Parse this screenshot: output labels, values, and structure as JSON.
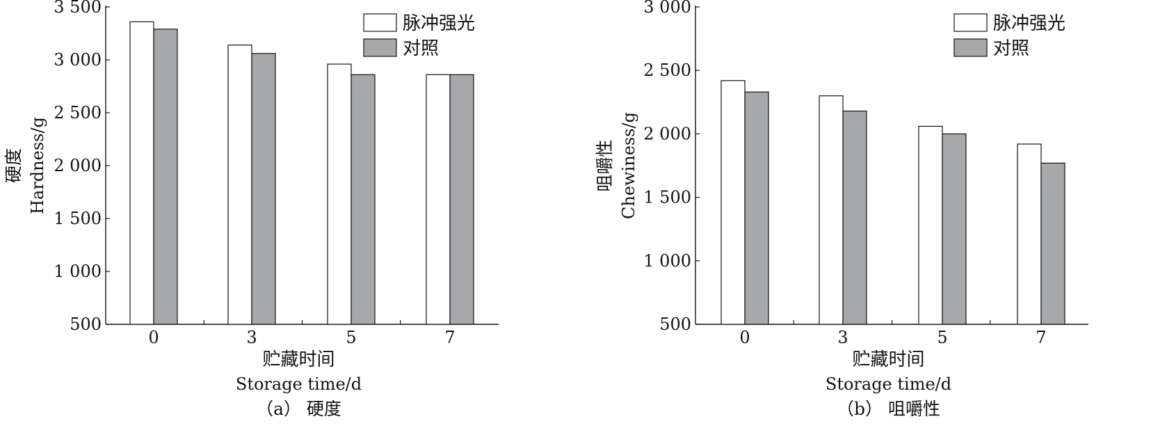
{
  "legend_labels": [
    "脉冲强光",
    "对照"
  ],
  "colors": {
    "pulsed": "#ffffff",
    "control": "#a7a8aa",
    "axis": "#111111"
  },
  "chart_data": [
    {
      "type": "bar",
      "categories": [
        "0",
        "3",
        "5",
        "7"
      ],
      "series": [
        {
          "name": "脉冲强光",
          "values": [
            3360,
            3140,
            2960,
            2860
          ]
        },
        {
          "name": "对照",
          "values": [
            3290,
            3060,
            2860,
            2860
          ]
        }
      ],
      "ylim": [
        500,
        3500
      ],
      "yticks": [
        500,
        1000,
        1500,
        2000,
        2500,
        3000,
        3500
      ],
      "ytick_labels": [
        "500",
        "1 000",
        "1 500",
        "2 000",
        "2 500",
        "3 000",
        "3 500"
      ],
      "ylabel_cn": "硬度",
      "ylabel_en": "Hardness/g",
      "xlabel_cn": "贮藏时间",
      "xlabel_en": "Storage time/d",
      "caption": "（a） 硬度",
      "legend": "top-right"
    },
    {
      "type": "bar",
      "categories": [
        "0",
        "3",
        "5",
        "7"
      ],
      "series": [
        {
          "name": "脉冲强光",
          "values": [
            2420,
            2300,
            2060,
            1920
          ]
        },
        {
          "name": "对照",
          "values": [
            2330,
            2180,
            2000,
            1770
          ]
        }
      ],
      "ylim": [
        500,
        3000
      ],
      "yticks": [
        500,
        1000,
        1500,
        2000,
        2500,
        3000
      ],
      "ytick_labels": [
        "500",
        "1 000",
        "1 500",
        "2 000",
        "2 500",
        "3 000"
      ],
      "ylabel_cn": "咀嚼性",
      "ylabel_en": "Chewiness/g",
      "xlabel_cn": "贮藏时间",
      "xlabel_en": "Storage time/d",
      "caption": "（b） 咀嚼性",
      "legend": "top-right"
    }
  ]
}
